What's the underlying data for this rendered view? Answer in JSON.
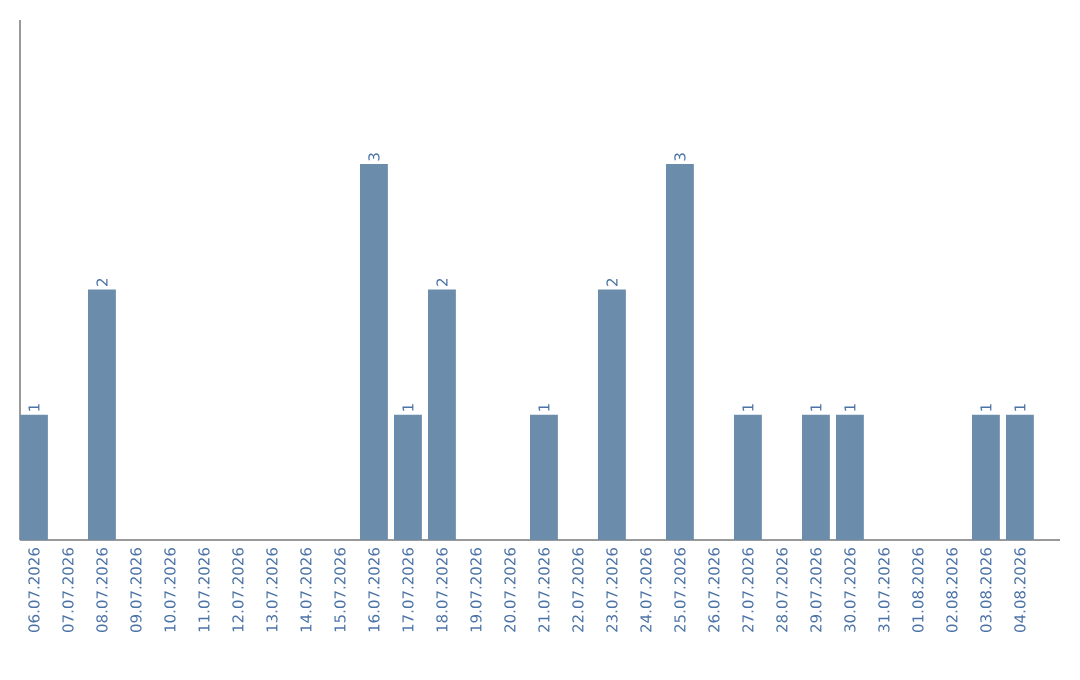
{
  "chart_data": {
    "type": "bar",
    "categories": [
      "06.07.2026",
      "07.07.2026",
      "08.07.2026",
      "09.07.2026",
      "10.07.2026",
      "11.07.2026",
      "12.07.2026",
      "13.07.2026",
      "14.07.2026",
      "15.07.2026",
      "16.07.2026",
      "17.07.2026",
      "18.07.2026",
      "19.07.2026",
      "20.07.2026",
      "21.07.2026",
      "22.07.2026",
      "23.07.2026",
      "24.07.2026",
      "25.07.2026",
      "26.07.2026",
      "27.07.2026",
      "28.07.2026",
      "29.07.2026",
      "30.07.2026",
      "31.07.2026",
      "01.08.2026",
      "02.08.2026",
      "03.08.2026",
      "04.08.2026"
    ],
    "values": [
      1,
      0,
      2,
      0,
      0,
      0,
      0,
      0,
      0,
      0,
      3,
      1,
      2,
      0,
      0,
      1,
      0,
      2,
      0,
      3,
      0,
      1,
      0,
      1,
      1,
      0,
      0,
      0,
      1,
      1
    ],
    "value_labels": [
      "1",
      null,
      "2",
      null,
      null,
      null,
      null,
      null,
      null,
      null,
      "3",
      "1",
      "2",
      null,
      null,
      "1",
      null,
      "2",
      null,
      "3",
      null,
      "1",
      null,
      "1",
      "1",
      null,
      null,
      null,
      "1",
      "1"
    ],
    "color": "#6b8cab",
    "ylim": [
      0,
      4.15
    ],
    "tick_labels": "x",
    "grid": false
  }
}
